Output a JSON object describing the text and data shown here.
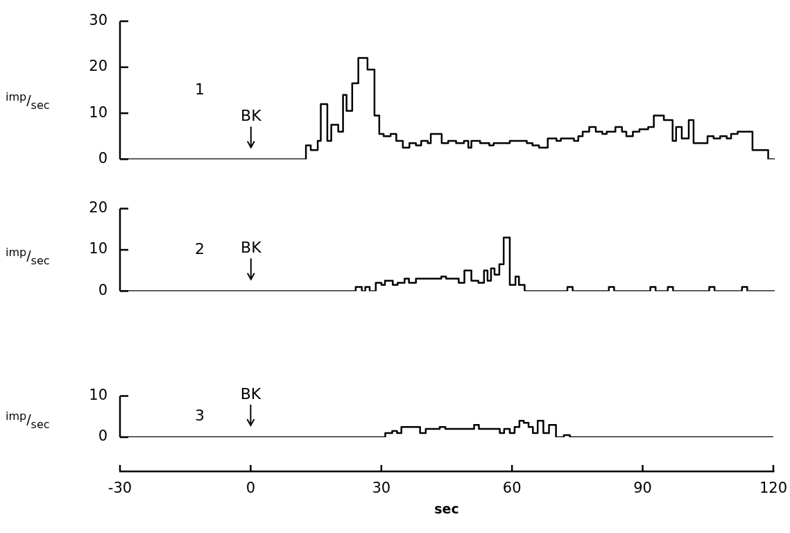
{
  "chart_data": [
    {
      "type": "step",
      "title": "1",
      "ylabel": "$^{imp}$/$_{sec}$",
      "color": "#000000",
      "x": [
        -30,
        12.6,
        13.7,
        15.3,
        16,
        17.5,
        18.4,
        20,
        21.1,
        21.9,
        23.2,
        24.6,
        26.7,
        28.3,
        29.4,
        30.4,
        32,
        33.3,
        34.8,
        36.3,
        37.8,
        39,
        40.5,
        41.2,
        43.7,
        45.2,
        47,
        48.8,
        49.8,
        50.5,
        52.5,
        54.6,
        55.6,
        59.3,
        63.2,
        64.5,
        66,
        68,
        70,
        71,
        74,
        75,
        76,
        77.5,
        79,
        80.5,
        81.5,
        83.5,
        85,
        86,
        87.5,
        89,
        91,
        92.3,
        94.6,
        96.6,
        97.4,
        98.7,
        100.3,
        101.4,
        104.6,
        106,
        107.5,
        109,
        110,
        111.5,
        114.1,
        114.9,
        118.5,
        120
      ],
      "values": [
        0,
        3,
        2,
        4,
        12,
        4,
        7.5,
        6,
        14,
        10.5,
        16.5,
        22,
        19.5,
        9.5,
        5.5,
        5,
        5.5,
        4,
        2.5,
        3.5,
        3,
        4,
        3.5,
        5.5,
        3.5,
        4,
        3.5,
        4,
        2.5,
        4,
        3.5,
        3,
        3.5,
        4,
        3.5,
        3,
        2.5,
        4.5,
        4,
        4.5,
        4,
        5,
        6,
        7,
        6,
        5.5,
        6,
        7,
        6,
        5,
        6,
        6.5,
        7,
        9.5,
        8.5,
        4,
        7,
        4.5,
        8.5,
        3.5,
        5,
        4.5,
        5,
        4.5,
        5.5,
        6,
        6,
        2,
        0,
        0
      ],
      "xlim": [
        -30,
        120
      ],
      "ylim": [
        0,
        30
      ],
      "yticks": [
        0,
        10,
        20,
        30
      ],
      "tick_labels": "y",
      "annotations": [
        "BK"
      ]
    },
    {
      "type": "step",
      "title": "2",
      "ylabel": "$^{imp}$/$_{sec}$",
      "color": "#000000",
      "x": [
        -30,
        24,
        25.4,
        26.2,
        27.2,
        28.6,
        29.9,
        30.7,
        32.5,
        33.6,
        35.2,
        36.2,
        37.8,
        43.6,
        44.7,
        47.6,
        48.9,
        50.5,
        52.1,
        53.4,
        54.2,
        55,
        55.8,
        56.9,
        57.9,
        59.3,
        60.6,
        61.4,
        62.7,
        72.5,
        73.7,
        82,
        83.2,
        91.5,
        92.7,
        95.5,
        96.7,
        105,
        106.2,
        112.5,
        113.7,
        120
      ],
      "values": [
        0,
        1,
        0,
        1,
        0,
        2,
        1.5,
        2.5,
        1.5,
        2,
        3,
        2,
        3,
        3.5,
        3,
        2,
        5,
        2.5,
        2,
        5,
        2.5,
        5.5,
        4,
        6.5,
        13,
        1.5,
        3.5,
        1.5,
        0,
        1,
        0,
        1,
        0,
        1,
        0,
        1,
        0,
        1,
        0,
        1,
        0,
        0
      ],
      "xlim": [
        -30,
        120
      ],
      "ylim": [
        0,
        20
      ],
      "yticks": [
        0,
        10,
        20
      ],
      "tick_labels": "y",
      "annotations": [
        "BK"
      ]
    },
    {
      "type": "step",
      "title": "3",
      "ylabel": "$^{imp}$/$_{sec}$",
      "xlabel": "sec",
      "color": "#000000",
      "x": [
        -30,
        30.9,
        32.5,
        33.6,
        34.6,
        38.9,
        40.2,
        43.4,
        44.7,
        51.3,
        52.4,
        57.2,
        58.2,
        59.5,
        60.6,
        61.7,
        62.7,
        63.8,
        64.8,
        65.9,
        67.2,
        68.5,
        70.1,
        71.9,
        73.3,
        120
      ],
      "values": [
        0,
        1,
        1.5,
        1,
        2.5,
        1,
        2,
        2.5,
        2,
        3,
        2,
        1,
        2,
        1,
        2.5,
        4,
        3.5,
        2.5,
        1,
        4,
        1,
        3,
        0,
        0.5,
        0,
        0
      ],
      "xlim": [
        -30,
        120
      ],
      "xticks": [
        -30,
        0,
        30,
        60,
        90,
        120
      ],
      "ylim": [
        0,
        10
      ],
      "yticks": [
        0,
        10
      ],
      "annotations": [
        "BK"
      ]
    }
  ]
}
